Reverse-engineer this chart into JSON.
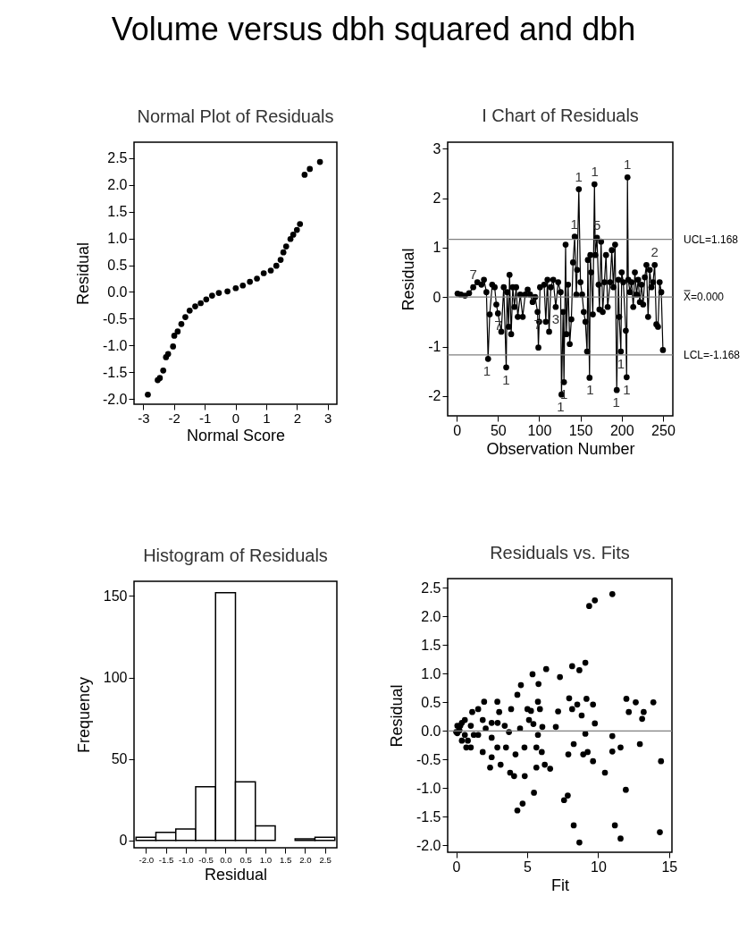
{
  "chart_data": [
    {
      "type": "scatter",
      "title": "Normal Plot of Residuals",
      "xlabel": "Normal Score",
      "ylabel": "Residual",
      "annotations": [
        "Volume versus dbh squared and dbh"
      ],
      "color": "#000000",
      "marker": "circle",
      "x": [
        -2.85,
        -2.53,
        -2.46,
        -2.35,
        -2.26,
        -2.19,
        -2.03,
        -1.99,
        -1.88,
        -1.76,
        -1.63,
        -1.49,
        -1.31,
        -1.13,
        -0.95,
        -0.76,
        -0.54,
        -0.26,
        0.01,
        0.24,
        0.47,
        0.7,
        0.92,
        1.15,
        1.33,
        1.47,
        1.56,
        1.65,
        1.79,
        1.88,
        2.0,
        2.1,
        2.25,
        2.42,
        2.75
      ],
      "values": [
        -1.92,
        -1.65,
        -1.61,
        -1.47,
        -1.22,
        -1.16,
        -1.02,
        -0.82,
        -0.74,
        -0.6,
        -0.47,
        -0.35,
        -0.27,
        -0.21,
        -0.14,
        -0.07,
        -0.02,
        0.01,
        0.07,
        0.12,
        0.19,
        0.25,
        0.35,
        0.4,
        0.49,
        0.6,
        0.74,
        0.85,
        0.99,
        1.07,
        1.16,
        1.27,
        2.19,
        2.3,
        2.43
      ],
      "xlim": [
        -3.3,
        3.3
      ],
      "ylim": [
        -2.1,
        2.8
      ],
      "xticks": [
        -3,
        -2,
        -1,
        0,
        1,
        2,
        3
      ],
      "yticks": [
        {
          "value": -2,
          "label": "-2.0"
        },
        -1.5,
        {
          "value": -1,
          "label": "-1.0"
        },
        -0.5,
        {
          "value": 0,
          "label": "0.0"
        },
        0.5,
        {
          "value": 1,
          "label": "1.0"
        },
        1.5,
        {
          "value": 2,
          "label": "2.0"
        },
        2.5
      ]
    },
    {
      "type": "line",
      "title": "I Chart of Residuals",
      "xlabel": "Observation Number",
      "ylabel": "Residual",
      "color": "#000000",
      "marker": "circle",
      "x": [
        1,
        5,
        10,
        15,
        20,
        25,
        30,
        33,
        36,
        38,
        40,
        43,
        46,
        48,
        50,
        54,
        57,
        60,
        61,
        63,
        64,
        66,
        68,
        70,
        72,
        74,
        77,
        80,
        83,
        86,
        89,
        92,
        95,
        98,
        99,
        100,
        101,
        106,
        108,
        110,
        112,
        114,
        117,
        120,
        123,
        126,
        127,
        129,
        130,
        132,
        133,
        135,
        137,
        139,
        141,
        143,
        145,
        146,
        148,
        150,
        152,
        154,
        156,
        158,
        159,
        161,
        162,
        163,
        165,
        167,
        168,
        170,
        172,
        173,
        175,
        177,
        179,
        181,
        183,
        186,
        188,
        190,
        192,
        194,
        196,
        197,
        199,
        200,
        202,
        205,
        206,
        207,
        208,
        210,
        212,
        214,
        216,
        218,
        220,
        222,
        224,
        226,
        228,
        230,
        232,
        234,
        236,
        238,
        240,
        242,
        244,
        246,
        248,
        250
      ],
      "values": [
        0.07,
        0.05,
        0.03,
        0.08,
        0.2,
        0.3,
        0.25,
        0.35,
        0.1,
        -1.25,
        -0.35,
        0.25,
        0.2,
        -0.15,
        -0.33,
        -0.7,
        0.2,
        -1.42,
        0.1,
        -0.6,
        0.45,
        -0.75,
        0.2,
        -0.2,
        0.2,
        -0.4,
        0.05,
        -0.4,
        0.05,
        0.15,
        0.05,
        -0.1,
        0.0,
        -0.3,
        -1.02,
        -0.5,
        0.2,
        0.25,
        -0.5,
        0.35,
        -0.7,
        0.2,
        0.35,
        -0.2,
        0.3,
        0.1,
        -1.97,
        -0.3,
        -1.72,
        1.06,
        -0.75,
        0.25,
        -0.95,
        -0.45,
        0.7,
        1.22,
        0.05,
        0.55,
        2.18,
        0.3,
        0.05,
        -0.3,
        -0.5,
        -1.1,
        0.75,
        -1.63,
        0.85,
        0.5,
        -0.35,
        2.28,
        0.85,
        1.2,
        0.25,
        -0.25,
        1.12,
        -0.3,
        0.3,
        0.85,
        -0.2,
        0.3,
        0.95,
        0.2,
        1.06,
        -1.88,
        0.35,
        -0.4,
        -1.1,
        0.5,
        0.3,
        -0.68,
        -1.62,
        2.42,
        0.35,
        0.1,
        0.3,
        -0.2,
        0.5,
        0.05,
        0.35,
        -0.1,
        0.25,
        -0.15,
        0.4,
        0.65,
        -0.4,
        0.55,
        0.2,
        0.3,
        0.65,
        -0.55,
        -0.6,
        0.3,
        0.1,
        -1.07
      ],
      "xlim": [
        -11,
        262
      ],
      "ylim": [
        -2.4,
        3.13
      ],
      "xticks": [
        0,
        50,
        100,
        150,
        200,
        250
      ],
      "yticks": [
        -2,
        -1,
        0,
        1,
        2,
        3
      ],
      "ref_lines": [
        {
          "axis": "y",
          "value": 1.168,
          "label": "UCL=1.168",
          "color": "#808080"
        },
        {
          "axis": "y",
          "value": 0,
          "label": "X̿=0.000",
          "color": "#808080"
        },
        {
          "axis": "y",
          "value": -1.168,
          "label": "LCL=-1.168",
          "color": "#808080"
        }
      ],
      "annotations": [
        {
          "text": "1",
          "x": 36.5,
          "y": -1.25
        },
        {
          "text": "1",
          "x": 60,
          "y": -1.42
        },
        {
          "text": "1",
          "x": 126,
          "y": -1.97
        },
        {
          "text": "1",
          "x": 130,
          "y": -1.72
        },
        {
          "text": "1",
          "x": 142.6,
          "y": 1.22
        },
        {
          "text": "1",
          "x": 148,
          "y": 2.18
        },
        {
          "text": "1",
          "x": 161.7,
          "y": -1.63
        },
        {
          "text": "1",
          "x": 167.5,
          "y": 2.28
        },
        {
          "text": "1",
          "x": 193.5,
          "y": -1.88
        },
        {
          "text": "1",
          "x": 199,
          "y": -1.1
        },
        {
          "text": "1",
          "x": 206,
          "y": -1.62
        },
        {
          "text": "1",
          "x": 207,
          "y": 2.42
        },
        {
          "text": "7",
          "x": 20,
          "y": 0.2
        },
        {
          "text": "7",
          "x": 50,
          "y": -0.33
        },
        {
          "text": "7",
          "x": 98,
          "y": -0.3
        },
        {
          "text": "3",
          "x": 120,
          "y": -0.2
        },
        {
          "text": "5",
          "x": 170,
          "y": 1.2
        },
        {
          "text": "2",
          "x": 240,
          "y": 0.65
        }
      ]
    },
    {
      "type": "histogram",
      "title": "Histogram of Residuals",
      "xlabel": "Residual",
      "ylabel": "Frequency",
      "color": "#ffffff",
      "bins": [
        -2.25,
        -1.75,
        -1.25,
        -0.75,
        -0.25,
        0.25,
        0.75,
        1.25,
        1.75,
        2.25,
        2.75
      ],
      "values": [
        2,
        5,
        7,
        33,
        152,
        36,
        9,
        0,
        1,
        2
      ],
      "xlim": [
        -2.3,
        2.8
      ],
      "ylim": [
        -4.5,
        159
      ],
      "yticks": [
        0,
        50,
        100,
        150
      ],
      "xticks": [
        {
          "value": -2,
          "label": "-2.0"
        },
        -1.5,
        {
          "value": -1,
          "label": "-1.0"
        },
        -0.5,
        {
          "value": 0,
          "label": "0.0"
        },
        0.5,
        {
          "value": 1,
          "label": "1.0"
        },
        1.5,
        {
          "value": 2,
          "label": "2.0"
        },
        2.5
      ]
    },
    {
      "type": "scatter",
      "title": "Residuals vs. Fits",
      "xlabel": "Fit",
      "ylabel": "Residual",
      "color": "#000000",
      "marker": "circle",
      "x": [
        11.0,
        9.37,
        9.77,
        9.1,
        8.68,
        8.17,
        7.31,
        6.34,
        5.38,
        5.8,
        4.56,
        4.31,
        1.97,
        2.9,
        3.87,
        5.02,
        5.76,
        5.9,
        7.18,
        7.96,
        8.17,
        8.53,
        9.18,
        9.64,
        11.99,
        12.16,
        12.65,
        13.21,
        13.1,
        13.89,
        8.84,
        9.77,
        7.02,
        5.44,
        6.07,
        4.5,
        11.0,
        11.0,
        11.58,
        12.94,
        14.43,
        14.35,
        11.95,
        11.18,
        11.58,
        10.48,
        9.64,
        9.26,
        8.95,
        9.1,
        8.28,
        7.9,
        7.86,
        7.6,
        8.28,
        8.68,
        5.48,
        4.31,
        4.68,
        4.83,
        4.08,
        3.8,
        5.65,
        6.24,
        6.62,
        6.03,
        5.65,
        5.76,
        4.81,
        4.18,
        3.51,
        3.13,
        2.39,
        2.5,
        2.9,
        1.87,
        1.03,
        0.71,
        0.4,
        0.08,
        0.08,
        0.4,
        0.61,
        1.03,
        1.13,
        1.55,
        1.87,
        1.55,
        2.08,
        2.5,
        3.03,
        3.42,
        3.72,
        2.5,
        1.24,
        0.82,
        0.23,
        0.29,
        0.0,
        0.61,
        2.92,
        5.13,
        5.27
      ],
      "values": [
        2.39,
        2.18,
        2.28,
        1.19,
        1.06,
        1.13,
        0.94,
        1.08,
        0.99,
        0.82,
        0.8,
        0.63,
        0.51,
        0.51,
        0.38,
        0.38,
        0.51,
        0.38,
        0.34,
        0.57,
        0.38,
        0.46,
        0.56,
        0.46,
        0.56,
        0.33,
        0.5,
        0.33,
        0.21,
        0.5,
        0.27,
        0.13,
        0.07,
        0.12,
        0.07,
        0.04,
        -0.09,
        -0.36,
        -0.29,
        -0.23,
        -0.53,
        -1.77,
        -1.03,
        -1.65,
        -1.88,
        -0.73,
        -0.53,
        -0.37,
        -0.41,
        -0.05,
        -0.23,
        -0.41,
        -1.13,
        -1.21,
        -1.65,
        -1.95,
        -1.08,
        -1.39,
        -1.27,
        -0.79,
        -0.79,
        -0.73,
        -0.64,
        -0.59,
        -0.66,
        -0.37,
        -0.29,
        -0.07,
        -0.29,
        -0.41,
        -0.29,
        -0.59,
        -0.64,
        -0.46,
        -0.29,
        -0.37,
        -0.29,
        -0.29,
        -0.17,
        -0.04,
        0.09,
        0.14,
        0.19,
        0.09,
        0.33,
        0.38,
        0.19,
        -0.07,
        0.04,
        -0.12,
        0.33,
        0.09,
        -0.02,
        0.14,
        -0.07,
        -0.17,
        0.01,
        0.09,
        -0.02,
        -0.07,
        0.14,
        0.19,
        0.35
      ],
      "xlim": [
        -0.6,
        15.2
      ],
      "ylim": [
        -2.12,
        2.66
      ],
      "xticks": [
        0,
        5,
        10,
        15
      ],
      "yticks": [
        {
          "value": -2,
          "label": "-2.0"
        },
        -1.5,
        {
          "value": -1,
          "label": "-1.0"
        },
        -0.5,
        {
          "value": 0,
          "label": "0.0"
        },
        0.5,
        {
          "value": 1,
          "label": "1.0"
        },
        1.5,
        {
          "value": 2,
          "label": "2.0"
        },
        2.5
      ],
      "ref_lines": [
        {
          "axis": "y",
          "value": 0,
          "color": "#808080"
        }
      ]
    }
  ]
}
